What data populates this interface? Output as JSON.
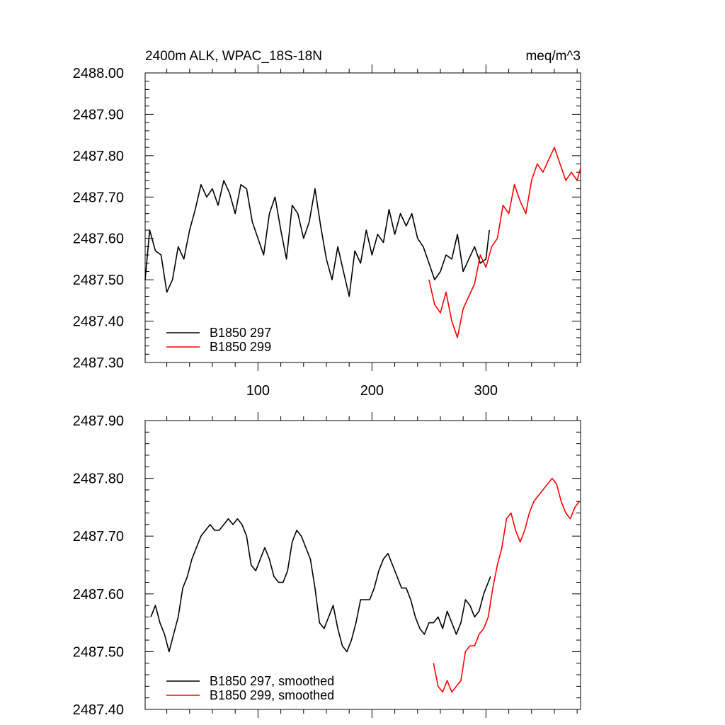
{
  "chart_data": [
    {
      "type": "line",
      "title_left": "2400m ALK, WPAC_18S-18N",
      "title_right": "meq/m^3",
      "xlabel": "",
      "ylabel": "",
      "xlim": [
        1,
        383
      ],
      "ylim": [
        2487.3,
        2488.0
      ],
      "xticks": [
        100,
        200,
        300
      ],
      "xtick_labels": [
        "100",
        "200",
        "300"
      ],
      "yticks": [
        2487.3,
        2487.4,
        2487.5,
        2487.6,
        2487.7,
        2487.8,
        2487.9,
        2488.0
      ],
      "ytick_labels": [
        "2487.30",
        "2487.40",
        "2487.50",
        "2487.60",
        "2487.70",
        "2487.80",
        "2487.90",
        "2488.00"
      ],
      "legend_position": "bottom-left",
      "series": [
        {
          "name": "B1850 297",
          "color": "#000000",
          "x": [
            1,
            5,
            10,
            15,
            20,
            25,
            30,
            35,
            40,
            45,
            50,
            55,
            60,
            65,
            70,
            75,
            80,
            85,
            90,
            95,
            100,
            105,
            110,
            115,
            120,
            125,
            130,
            135,
            140,
            145,
            150,
            155,
            160,
            165,
            170,
            175,
            180,
            185,
            190,
            195,
            200,
            205,
            210,
            215,
            220,
            225,
            230,
            235,
            240,
            245,
            250,
            255,
            260,
            265,
            270,
            275,
            280,
            285,
            290,
            295,
            300,
            303
          ],
          "y": [
            2487.5,
            2487.62,
            2487.57,
            2487.56,
            2487.47,
            2487.5,
            2487.58,
            2487.55,
            2487.62,
            2487.67,
            2487.73,
            2487.7,
            2487.72,
            2487.68,
            2487.74,
            2487.71,
            2487.66,
            2487.73,
            2487.72,
            2487.64,
            2487.6,
            2487.56,
            2487.66,
            2487.7,
            2487.62,
            2487.55,
            2487.68,
            2487.66,
            2487.6,
            2487.64,
            2487.72,
            2487.63,
            2487.55,
            2487.5,
            2487.58,
            2487.52,
            2487.46,
            2487.57,
            2487.54,
            2487.62,
            2487.56,
            2487.61,
            2487.59,
            2487.67,
            2487.61,
            2487.66,
            2487.63,
            2487.66,
            2487.6,
            2487.58,
            2487.54,
            2487.5,
            2487.52,
            2487.56,
            2487.55,
            2487.61,
            2487.52,
            2487.55,
            2487.58,
            2487.54,
            2487.55,
            2487.62
          ]
        },
        {
          "name": "B1850 299",
          "color": "#ff0000",
          "x": [
            250,
            255,
            260,
            265,
            270,
            275,
            280,
            285,
            290,
            295,
            300,
            305,
            310,
            315,
            320,
            325,
            330,
            335,
            340,
            345,
            350,
            355,
            360,
            365,
            370,
            375,
            380,
            383
          ],
          "y": [
            2487.5,
            2487.44,
            2487.42,
            2487.47,
            2487.4,
            2487.36,
            2487.43,
            2487.46,
            2487.49,
            2487.56,
            2487.53,
            2487.58,
            2487.6,
            2487.68,
            2487.66,
            2487.73,
            2487.69,
            2487.66,
            2487.74,
            2487.78,
            2487.76,
            2487.79,
            2487.82,
            2487.78,
            2487.74,
            2487.76,
            2487.74,
            2487.77
          ]
        }
      ]
    },
    {
      "type": "line",
      "title_left": "",
      "title_right": "",
      "xlabel": "",
      "ylabel": "",
      "xlim": [
        1,
        383
      ],
      "ylim": [
        2487.4,
        2487.9
      ],
      "xticks": [
        100,
        200,
        300
      ],
      "xtick_labels": [
        "",
        "",
        ""
      ],
      "yticks": [
        2487.4,
        2487.5,
        2487.6,
        2487.7,
        2487.8,
        2487.9
      ],
      "ytick_labels": [
        "2487.40",
        "2487.50",
        "2487.60",
        "2487.70",
        "2487.80",
        "2487.90"
      ],
      "legend_position": "bottom-left",
      "series": [
        {
          "name": "B1850 297, smoothed",
          "color": "#000000",
          "x": [
            6,
            10,
            14,
            18,
            22,
            26,
            30,
            34,
            38,
            42,
            46,
            50,
            54,
            58,
            62,
            66,
            70,
            74,
            78,
            82,
            86,
            90,
            94,
            98,
            102,
            106,
            110,
            114,
            118,
            122,
            126,
            130,
            134,
            138,
            142,
            146,
            150,
            154,
            158,
            162,
            166,
            170,
            174,
            178,
            182,
            186,
            190,
            194,
            198,
            202,
            206,
            210,
            214,
            218,
            222,
            226,
            230,
            234,
            238,
            242,
            246,
            250,
            254,
            258,
            262,
            266,
            270,
            274,
            278,
            282,
            286,
            290,
            294,
            298,
            302,
            304
          ],
          "y": [
            2487.56,
            2487.58,
            2487.55,
            2487.53,
            2487.5,
            2487.53,
            2487.56,
            2487.61,
            2487.63,
            2487.66,
            2487.68,
            2487.7,
            2487.71,
            2487.72,
            2487.71,
            2487.71,
            2487.72,
            2487.73,
            2487.72,
            2487.73,
            2487.72,
            2487.7,
            2487.65,
            2487.64,
            2487.66,
            2487.68,
            2487.66,
            2487.63,
            2487.62,
            2487.62,
            2487.64,
            2487.69,
            2487.71,
            2487.7,
            2487.68,
            2487.66,
            2487.61,
            2487.55,
            2487.54,
            2487.56,
            2487.58,
            2487.54,
            2487.51,
            2487.5,
            2487.52,
            2487.55,
            2487.59,
            2487.59,
            2487.59,
            2487.61,
            2487.64,
            2487.66,
            2487.67,
            2487.65,
            2487.63,
            2487.61,
            2487.61,
            2487.59,
            2487.56,
            2487.54,
            2487.53,
            2487.55,
            2487.55,
            2487.56,
            2487.54,
            2487.57,
            2487.55,
            2487.53,
            2487.55,
            2487.59,
            2487.58,
            2487.56,
            2487.57,
            2487.6,
            2487.62,
            2487.63
          ]
        },
        {
          "name": "B1850 299, smoothed",
          "color": "#ff0000",
          "x": [
            254,
            258,
            262,
            266,
            270,
            274,
            278,
            282,
            286,
            290,
            294,
            298,
            302,
            306,
            310,
            314,
            318,
            322,
            326,
            330,
            334,
            338,
            342,
            346,
            350,
            354,
            358,
            362,
            366,
            370,
            374,
            378,
            382
          ],
          "y": [
            2487.48,
            2487.44,
            2487.43,
            2487.45,
            2487.43,
            2487.44,
            2487.45,
            2487.5,
            2487.51,
            2487.51,
            2487.53,
            2487.54,
            2487.56,
            2487.61,
            2487.65,
            2487.68,
            2487.73,
            2487.74,
            2487.71,
            2487.69,
            2487.71,
            2487.74,
            2487.76,
            2487.77,
            2487.78,
            2487.79,
            2487.8,
            2487.79,
            2487.76,
            2487.74,
            2487.73,
            2487.75,
            2487.76
          ]
        }
      ]
    }
  ]
}
